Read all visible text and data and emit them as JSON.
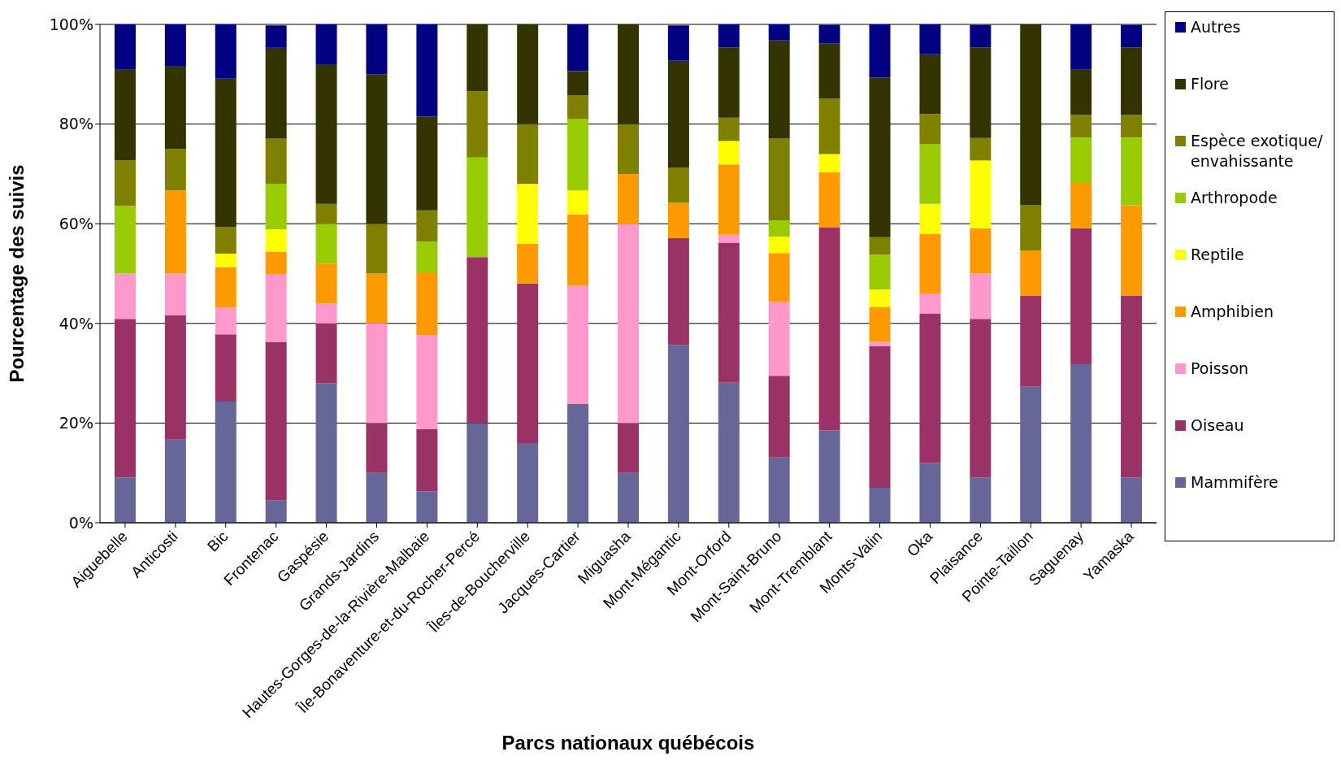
{
  "chart_data": {
    "type": "bar",
    "stacked": true,
    "xlabel": "Parcs nationaux québécois",
    "ylabel": "Pourcentage des suivis",
    "categories": [
      "Aiguebelle",
      "Anticosti",
      "Bic",
      "Frontenac",
      "Gaspésie",
      "Grands-Jardins",
      "Hautes-Gorges-de-la-Rivière-Malbaie",
      "Île-Bonaventure-et-du-Rocher-Percé",
      "Îles-de-Boucherville",
      "Jacques-Cartier",
      "Miguasha",
      "Mont-Mégantic",
      "Mont-Orford",
      "Mont-Saint-Bruno",
      "Mont-Tremblant",
      "Monts-Valin",
      "Oka",
      "Plaisance",
      "Pointe-Taillon",
      "Saguenay",
      "Yamaska"
    ],
    "ylim": [
      0,
      100
    ],
    "yticks": [
      {
        "value": 0,
        "label": "0%"
      },
      {
        "value": 20,
        "label": "20%"
      },
      {
        "value": 40,
        "label": "40%"
      },
      {
        "value": 60,
        "label": "60%"
      },
      {
        "value": 80,
        "label": "80%"
      },
      {
        "value": 100,
        "label": "100%"
      }
    ],
    "grid": "y",
    "legend": "right",
    "series": [
      {
        "name": "Mammifère",
        "color": "#666699",
        "values": [
          9.1,
          16.7,
          24.3,
          4.5,
          28,
          10,
          6.3,
          20,
          16,
          23.8,
          10,
          35.7,
          28.1,
          13.1,
          18.5,
          7.0,
          12,
          9.1,
          27.3,
          31.8,
          9.1
        ]
      },
      {
        "name": "Oiseau",
        "color": "#993366",
        "values": [
          31.8,
          25,
          13.5,
          31.8,
          12,
          10,
          12.5,
          33.3,
          32,
          0,
          10,
          21.4,
          28.1,
          16.4,
          40.7,
          28.4,
          30,
          31.8,
          18.2,
          27.3,
          36.4
        ]
      },
      {
        "name": "Poisson",
        "color": "#ff99cc",
        "values": [
          9.1,
          8.3,
          5.4,
          13.6,
          4,
          20,
          18.8,
          0,
          0,
          23.8,
          40,
          0,
          1.6,
          14.8,
          0,
          0.9,
          4,
          9.1,
          0,
          0,
          0
        ]
      },
      {
        "name": "Amphibien",
        "color": "#ff9900",
        "values": [
          0,
          16.7,
          8.1,
          4.5,
          8,
          10,
          12.5,
          0,
          8,
          14.3,
          10,
          7.1,
          14.1,
          9.8,
          11.1,
          7.0,
          12,
          9.1,
          9.1,
          9.1,
          18.2
        ]
      },
      {
        "name": "Reptile",
        "color": "#ffff00",
        "values": [
          0,
          0,
          2.7,
          4.5,
          0,
          0,
          0,
          0,
          12,
          4.8,
          0,
          0,
          4.7,
          3.3,
          3.7,
          3.5,
          6,
          13.6,
          0,
          0,
          0
        ]
      },
      {
        "name": "Arthropode",
        "color": "#99cc00",
        "values": [
          13.6,
          0,
          0,
          9.1,
          8,
          0,
          6.3,
          20,
          0,
          14.3,
          0,
          0,
          0,
          3.3,
          0,
          7.0,
          12,
          0,
          0,
          9.1,
          13.6
        ]
      },
      {
        "name": "Espèce exotique/ envahissante",
        "color": "#808000",
        "values": [
          9.1,
          8.3,
          5.4,
          9.1,
          4,
          10,
          6.3,
          13.3,
          12,
          4.8,
          10,
          7.1,
          4.7,
          16.4,
          11.1,
          3.5,
          6,
          4.5,
          9.1,
          4.5,
          4.5
        ]
      },
      {
        "name": "Flore",
        "color": "#333300",
        "values": [
          18.2,
          16.7,
          29.7,
          18.2,
          28,
          30,
          18.8,
          13.4,
          20,
          4.8,
          20,
          21.4,
          14.1,
          19.7,
          11.1,
          32.0,
          12,
          18.2,
          36.4,
          9.1,
          13.6
        ]
      },
      {
        "name": "Autres",
        "color": "#000080",
        "values": [
          9.1,
          8.3,
          10.9,
          4.5,
          8,
          10,
          18.8,
          0,
          0,
          9.5,
          0,
          7.1,
          4.7,
          3.3,
          3.7,
          10.7,
          6,
          4.5,
          0,
          9.1,
          4.5
        ]
      }
    ]
  }
}
